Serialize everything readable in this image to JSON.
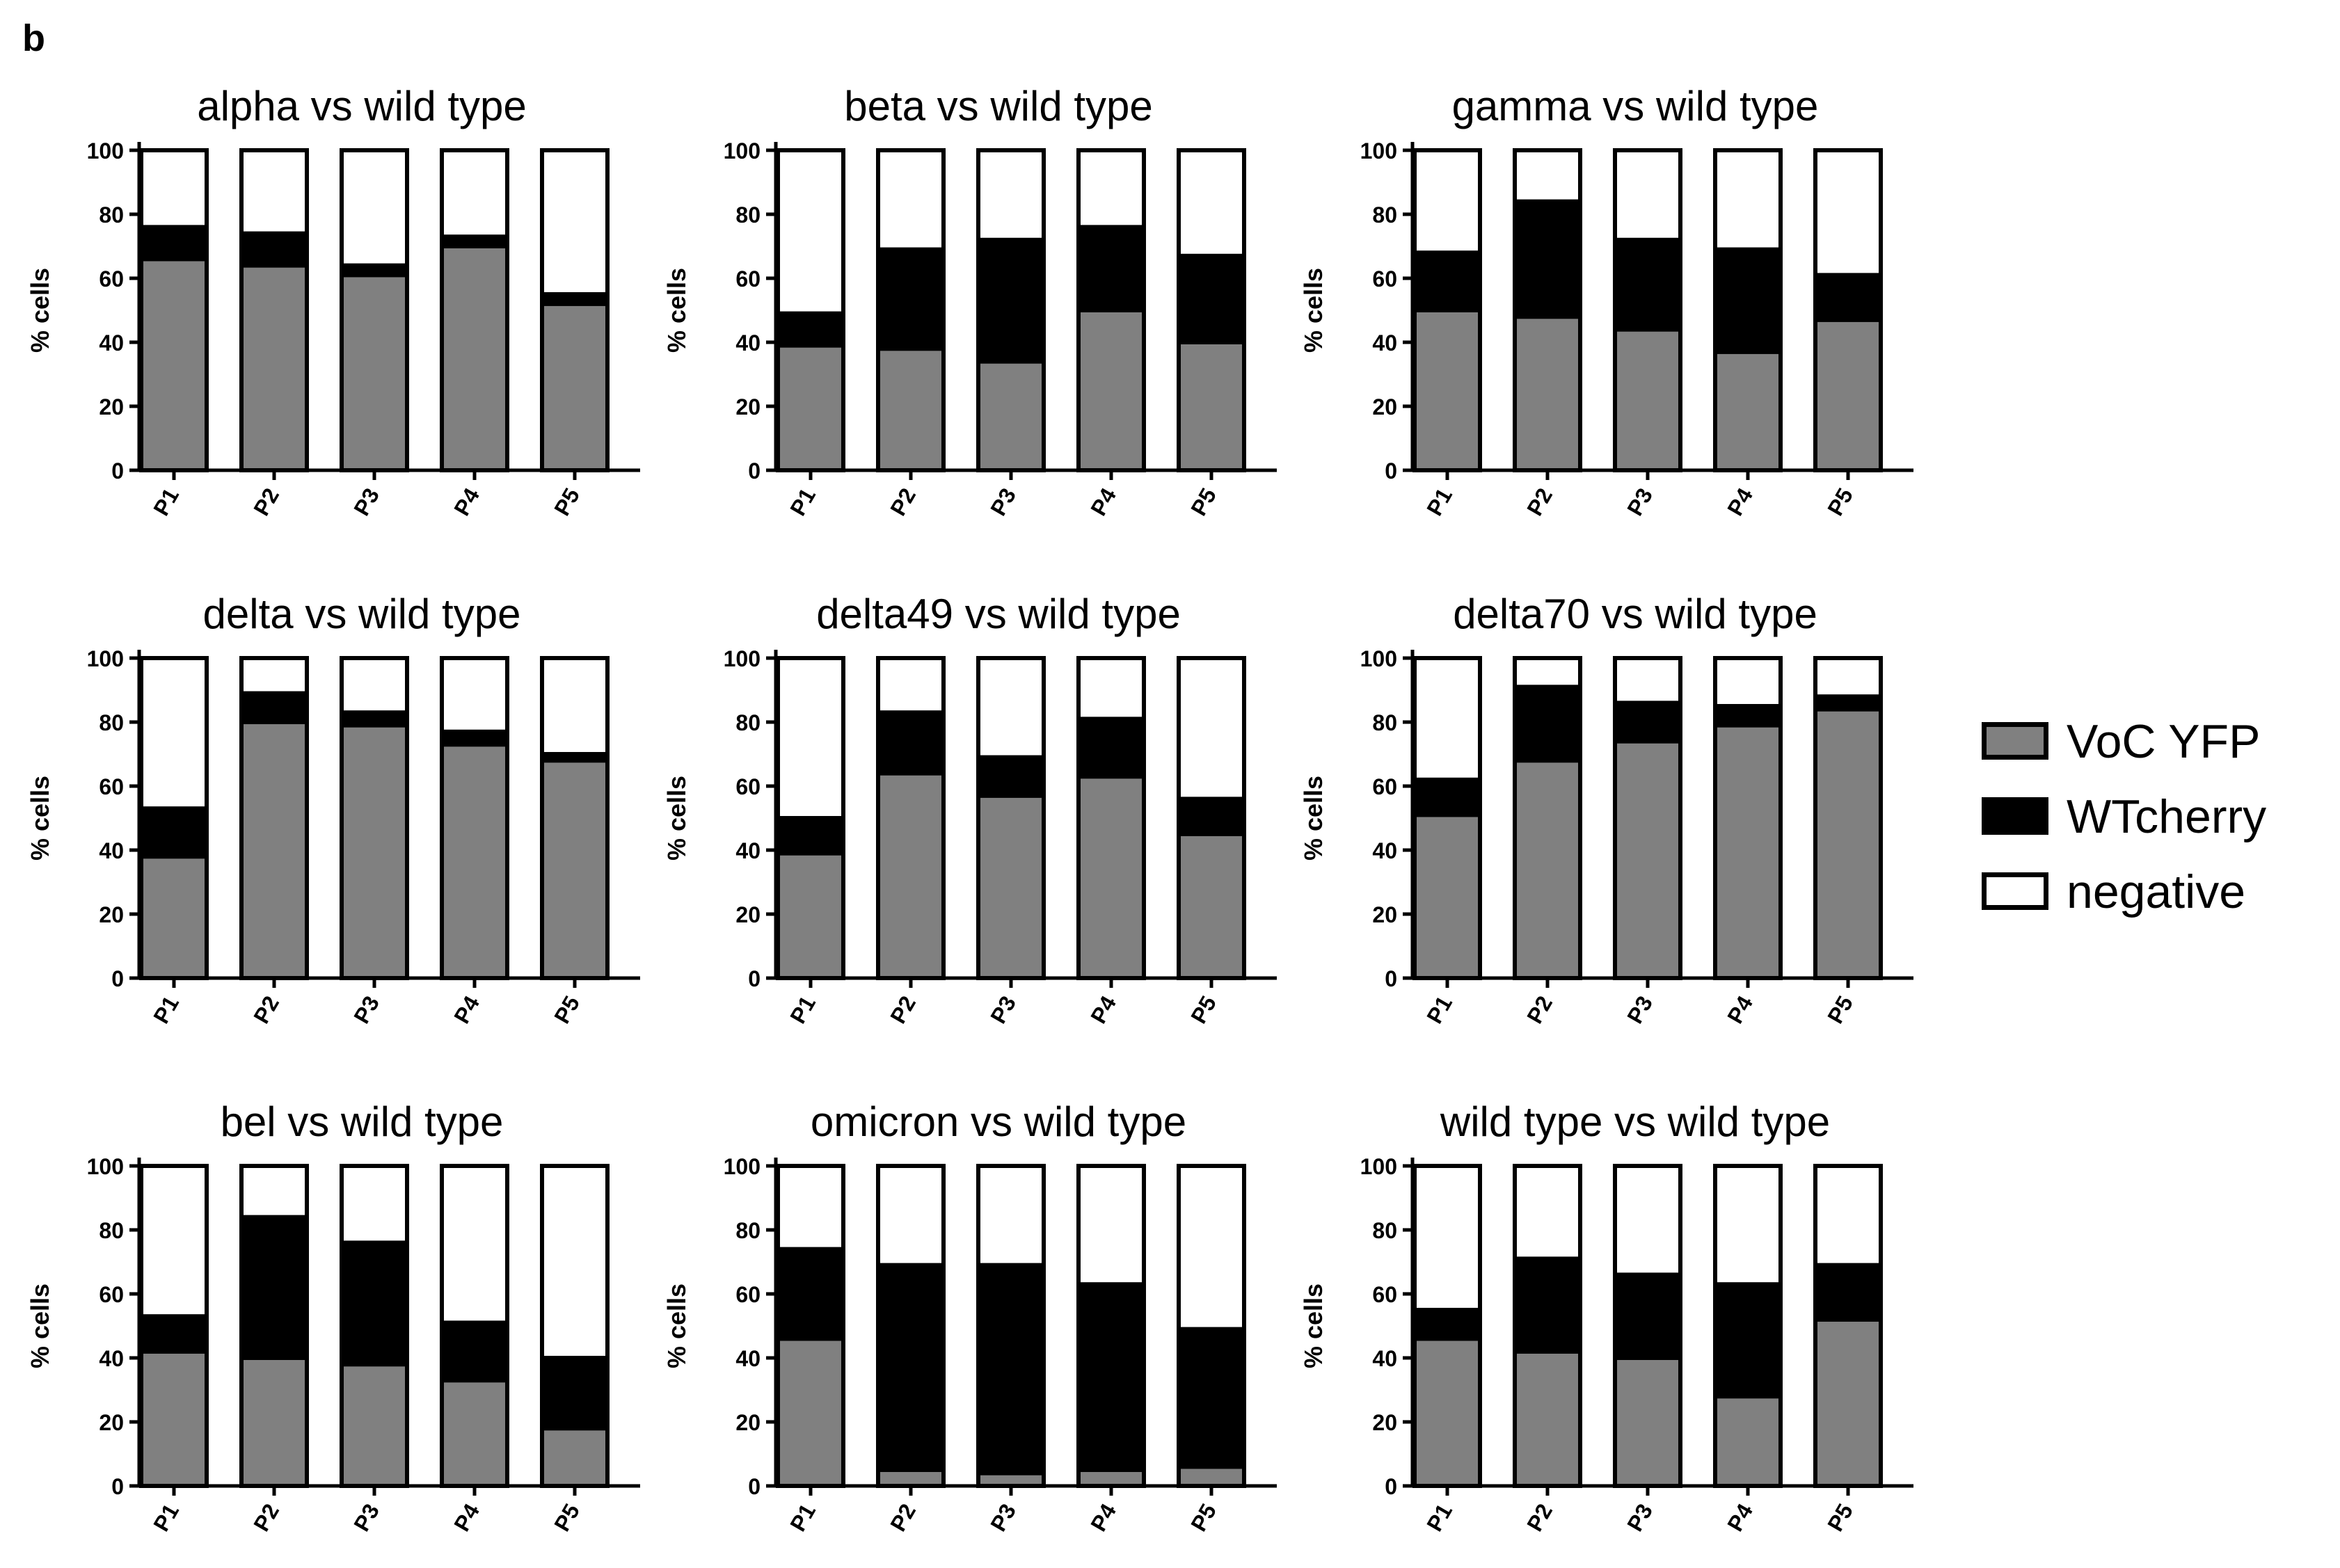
{
  "figure": {
    "panel_label": "b"
  },
  "colors": {
    "VoC YFP": "#808080",
    "WTcherry": "#000000",
    "negative": "#ffffff"
  },
  "legend": [
    {
      "label": "VoC YFP",
      "color": "#808080"
    },
    {
      "label": "WTcherry",
      "color": "#000000"
    },
    {
      "label": "negative",
      "color": "#ffffff"
    }
  ],
  "chart_data": [
    {
      "type": "bar",
      "stacked": true,
      "title": "alpha vs wild type",
      "xlabel": "",
      "ylabel": "% cells",
      "ylim": [
        0,
        100
      ],
      "yticks": [
        0,
        20,
        40,
        60,
        80,
        100
      ],
      "categories": [
        "P1",
        "P2",
        "P3",
        "P4",
        "P5"
      ],
      "series": [
        {
          "name": "VoC YFP",
          "values": [
            66,
            64,
            61,
            70,
            52
          ]
        },
        {
          "name": "WTcherry",
          "values": [
            10,
            10,
            3,
            3,
            3
          ]
        },
        {
          "name": "negative",
          "values": [
            24,
            26,
            36,
            27,
            45
          ]
        }
      ]
    },
    {
      "type": "bar",
      "stacked": true,
      "title": "beta vs wild type",
      "xlabel": "",
      "ylabel": "% cells",
      "ylim": [
        0,
        100
      ],
      "yticks": [
        0,
        20,
        40,
        60,
        80,
        100
      ],
      "categories": [
        "P1",
        "P2",
        "P3",
        "P4",
        "P5"
      ],
      "series": [
        {
          "name": "VoC YFP",
          "values": [
            39,
            38,
            34,
            50,
            40
          ]
        },
        {
          "name": "WTcherry",
          "values": [
            10,
            31,
            38,
            26,
            27
          ]
        },
        {
          "name": "negative",
          "values": [
            51,
            31,
            28,
            24,
            33
          ]
        }
      ]
    },
    {
      "type": "bar",
      "stacked": true,
      "title": "gamma vs wild type",
      "xlabel": "",
      "ylabel": "% cells",
      "ylim": [
        0,
        100
      ],
      "yticks": [
        0,
        20,
        40,
        60,
        80,
        100
      ],
      "categories": [
        "P1",
        "P2",
        "P3",
        "P4",
        "P5"
      ],
      "series": [
        {
          "name": "VoC YFP",
          "values": [
            50,
            48,
            44,
            37,
            47
          ]
        },
        {
          "name": "WTcherry",
          "values": [
            18,
            36,
            28,
            32,
            14
          ]
        },
        {
          "name": "negative",
          "values": [
            32,
            16,
            28,
            31,
            39
          ]
        }
      ]
    },
    {
      "type": "bar",
      "stacked": true,
      "title": "delta vs wild type",
      "xlabel": "",
      "ylabel": "% cells",
      "ylim": [
        0,
        100
      ],
      "yticks": [
        0,
        20,
        40,
        60,
        80,
        100
      ],
      "categories": [
        "P1",
        "P2",
        "P3",
        "P4",
        "P5"
      ],
      "series": [
        {
          "name": "VoC YFP",
          "values": [
            38,
            80,
            79,
            73,
            68
          ]
        },
        {
          "name": "WTcherry",
          "values": [
            15,
            9,
            4,
            4,
            2
          ]
        },
        {
          "name": "negative",
          "values": [
            47,
            11,
            17,
            23,
            30
          ]
        }
      ]
    },
    {
      "type": "bar",
      "stacked": true,
      "title": "delta49 vs wild type",
      "xlabel": "",
      "ylabel": "% cells",
      "ylim": [
        0,
        100
      ],
      "yticks": [
        0,
        20,
        40,
        60,
        80,
        100
      ],
      "categories": [
        "P1",
        "P2",
        "P3",
        "P4",
        "P5"
      ],
      "series": [
        {
          "name": "VoC YFP",
          "values": [
            39,
            64,
            57,
            63,
            45
          ]
        },
        {
          "name": "WTcherry",
          "values": [
            11,
            19,
            12,
            18,
            11
          ]
        },
        {
          "name": "negative",
          "values": [
            50,
            17,
            31,
            19,
            44
          ]
        }
      ]
    },
    {
      "type": "bar",
      "stacked": true,
      "title": "delta70 vs wild type",
      "xlabel": "",
      "ylabel": "% cells",
      "ylim": [
        0,
        100
      ],
      "yticks": [
        0,
        20,
        40,
        60,
        80,
        100
      ],
      "categories": [
        "P1",
        "P2",
        "P3",
        "P4",
        "P5"
      ],
      "series": [
        {
          "name": "VoC YFP",
          "values": [
            51,
            68,
            74,
            79,
            84
          ]
        },
        {
          "name": "WTcherry",
          "values": [
            11,
            23,
            12,
            6,
            4
          ]
        },
        {
          "name": "negative",
          "values": [
            38,
            9,
            14,
            15,
            12
          ]
        }
      ]
    },
    {
      "type": "bar",
      "stacked": true,
      "title": "bel vs wild type",
      "xlabel": "",
      "ylabel": "% cells",
      "ylim": [
        0,
        100
      ],
      "yticks": [
        0,
        20,
        40,
        60,
        80,
        100
      ],
      "categories": [
        "P1",
        "P2",
        "P3",
        "P4",
        "P5"
      ],
      "series": [
        {
          "name": "VoC YFP",
          "values": [
            42,
            40,
            38,
            33,
            18
          ]
        },
        {
          "name": "WTcherry",
          "values": [
            11,
            44,
            38,
            18,
            22
          ]
        },
        {
          "name": "negative",
          "values": [
            47,
            16,
            24,
            49,
            60
          ]
        }
      ]
    },
    {
      "type": "bar",
      "stacked": true,
      "title": "omicron vs wild type",
      "xlabel": "",
      "ylabel": "% cells",
      "ylim": [
        0,
        100
      ],
      "yticks": [
        0,
        20,
        40,
        60,
        80,
        100
      ],
      "categories": [
        "P1",
        "P2",
        "P3",
        "P4",
        "P5"
      ],
      "series": [
        {
          "name": "VoC YFP",
          "values": [
            46,
            5,
            4,
            5,
            6
          ]
        },
        {
          "name": "WTcherry",
          "values": [
            28,
            64,
            65,
            58,
            43
          ]
        },
        {
          "name": "negative",
          "values": [
            26,
            31,
            31,
            37,
            51
          ]
        }
      ]
    },
    {
      "type": "bar",
      "stacked": true,
      "title": "wild type vs wild type",
      "xlabel": "",
      "ylabel": "% cells",
      "ylim": [
        0,
        100
      ],
      "yticks": [
        0,
        20,
        40,
        60,
        80,
        100
      ],
      "categories": [
        "P1",
        "P2",
        "P3",
        "P4",
        "P5"
      ],
      "series": [
        {
          "name": "VoC YFP",
          "values": [
            46,
            42,
            40,
            28,
            52
          ]
        },
        {
          "name": "WTcherry",
          "values": [
            9,
            29,
            26,
            35,
            17
          ]
        },
        {
          "name": "negative",
          "values": [
            45,
            29,
            34,
            37,
            31
          ]
        }
      ]
    }
  ]
}
